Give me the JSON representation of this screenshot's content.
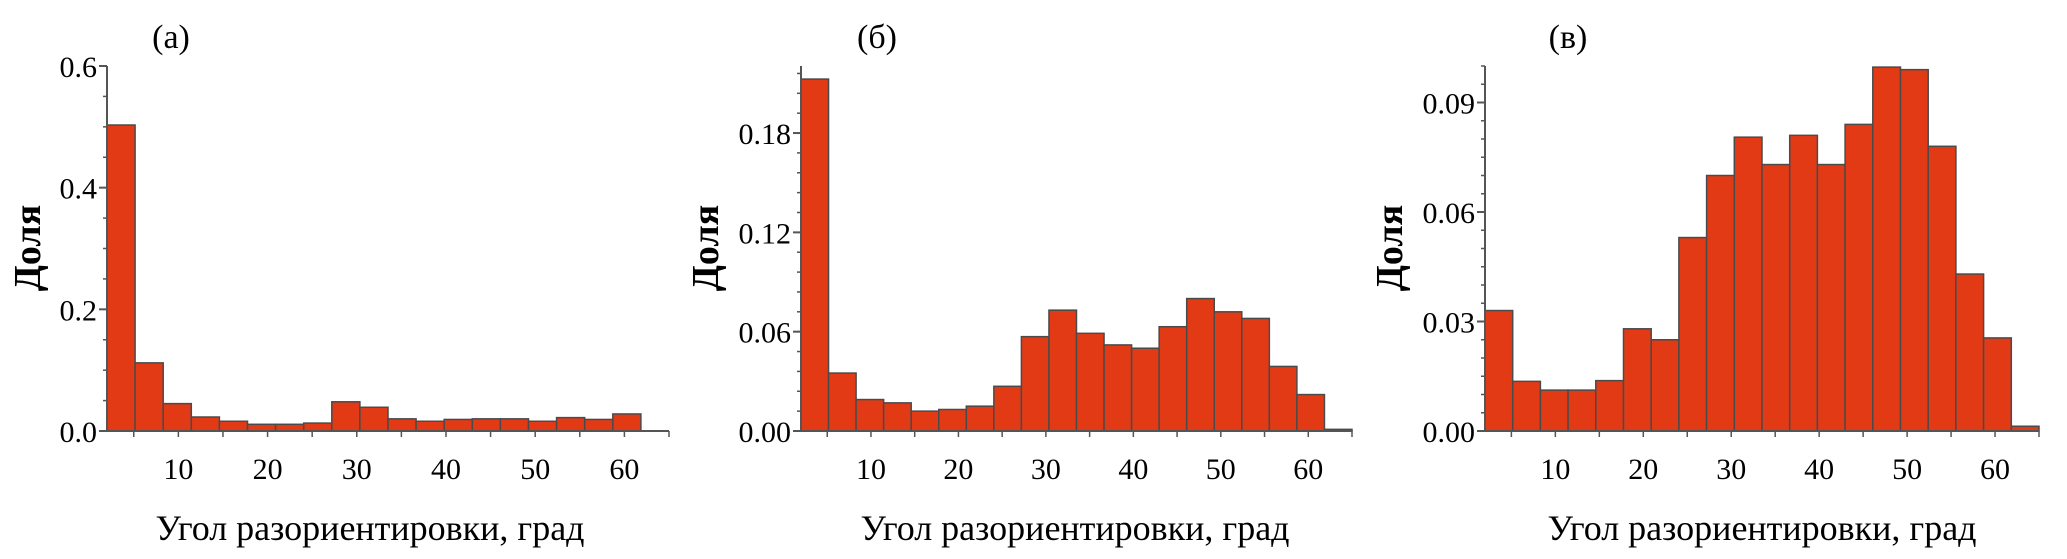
{
  "style": {
    "bar_fill": "#e33a16",
    "bar_edge": "#4a4a4a",
    "axis": "#555555"
  },
  "chart_data": [
    {
      "type": "bar",
      "title": "(a)",
      "xlabel": "Угол разориентировки, град",
      "ylabel": "Доля",
      "xlim": [
        2,
        65
      ],
      "ylim": [
        0,
        0.6
      ],
      "bin_start": 2,
      "bin_width": 3.15,
      "xticks": [
        10,
        20,
        30,
        40,
        50,
        60
      ],
      "xtick_labels": [
        "10",
        "20",
        "30",
        "40",
        "50",
        "60"
      ],
      "yticks": [
        0,
        0.2,
        0.4,
        0.6
      ],
      "ytick_labels": [
        "0.0",
        "0.2",
        "0.4",
        "0.6"
      ],
      "yminor_step": 0.05,
      "values": [
        0.503,
        0.112,
        0.045,
        0.023,
        0.016,
        0.011,
        0.011,
        0.013,
        0.048,
        0.039,
        0.02,
        0.016,
        0.019,
        0.02,
        0.02,
        0.016,
        0.022,
        0.019,
        0.028
      ]
    },
    {
      "type": "bar",
      "title": "(б)",
      "xlabel": "Угол разориентировки, град",
      "ylabel": "Доля",
      "xlim": [
        2,
        65
      ],
      "ylim": [
        0,
        0.2205
      ],
      "bin_start": 2,
      "bin_width": 3.15,
      "xticks": [
        10,
        20,
        30,
        40,
        50,
        60
      ],
      "xtick_labels": [
        "10",
        "20",
        "30",
        "40",
        "50",
        "60"
      ],
      "yticks": [
        0,
        0.06,
        0.12,
        0.18
      ],
      "ytick_labels": [
        "0.00",
        "0.06",
        "0.12",
        "0.18"
      ],
      "yminor_step": 0.012,
      "values": [
        0.2126,
        0.035,
        0.019,
        0.017,
        0.012,
        0.013,
        0.015,
        0.027,
        0.057,
        0.073,
        0.059,
        0.052,
        0.05,
        0.063,
        0.08,
        0.072,
        0.068,
        0.039,
        0.022,
        0.001
      ]
    },
    {
      "type": "bar",
      "title": "(в)",
      "xlabel": "Угол разориентировки, град",
      "ylabel": "Доля",
      "xlim": [
        2,
        65
      ],
      "ylim": [
        0,
        0.1
      ],
      "bin_start": 2,
      "bin_width": 3.15,
      "xticks": [
        10,
        20,
        30,
        40,
        50,
        60
      ],
      "xtick_labels": [
        "10",
        "20",
        "30",
        "40",
        "50",
        "60"
      ],
      "yticks": [
        0,
        0.03,
        0.06,
        0.09
      ],
      "ytick_labels": [
        "0.00",
        "0.03",
        "0.06",
        "0.09"
      ],
      "yminor_step": 0.005,
      "values": [
        0.033,
        0.0136,
        0.0112,
        0.0112,
        0.0138,
        0.028,
        0.025,
        0.053,
        0.07,
        0.0805,
        0.073,
        0.081,
        0.073,
        0.084,
        0.0997,
        0.099,
        0.078,
        0.043,
        0.0255,
        0.0013
      ]
    }
  ]
}
